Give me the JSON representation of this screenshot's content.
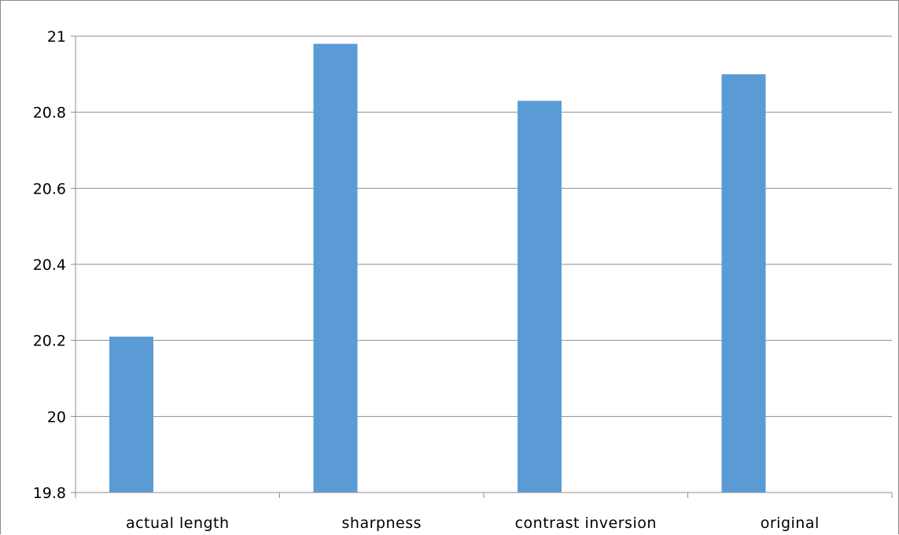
{
  "chart_data": {
    "type": "bar",
    "categories": [
      "actual length",
      "sharpness",
      "contrast inversion",
      "original"
    ],
    "values": [
      20.21,
      20.98,
      20.83,
      20.9
    ],
    "ylim": [
      19.8,
      21
    ],
    "yticks": [
      "19.8",
      "20",
      "20.2",
      "20.4",
      "20.6",
      "20.8",
      "21"
    ],
    "grid": true,
    "legend": "none",
    "colors": {
      "bar": "#5b9bd5",
      "grid": "#8c8c8c",
      "axis": "#8c8c8c"
    }
  }
}
